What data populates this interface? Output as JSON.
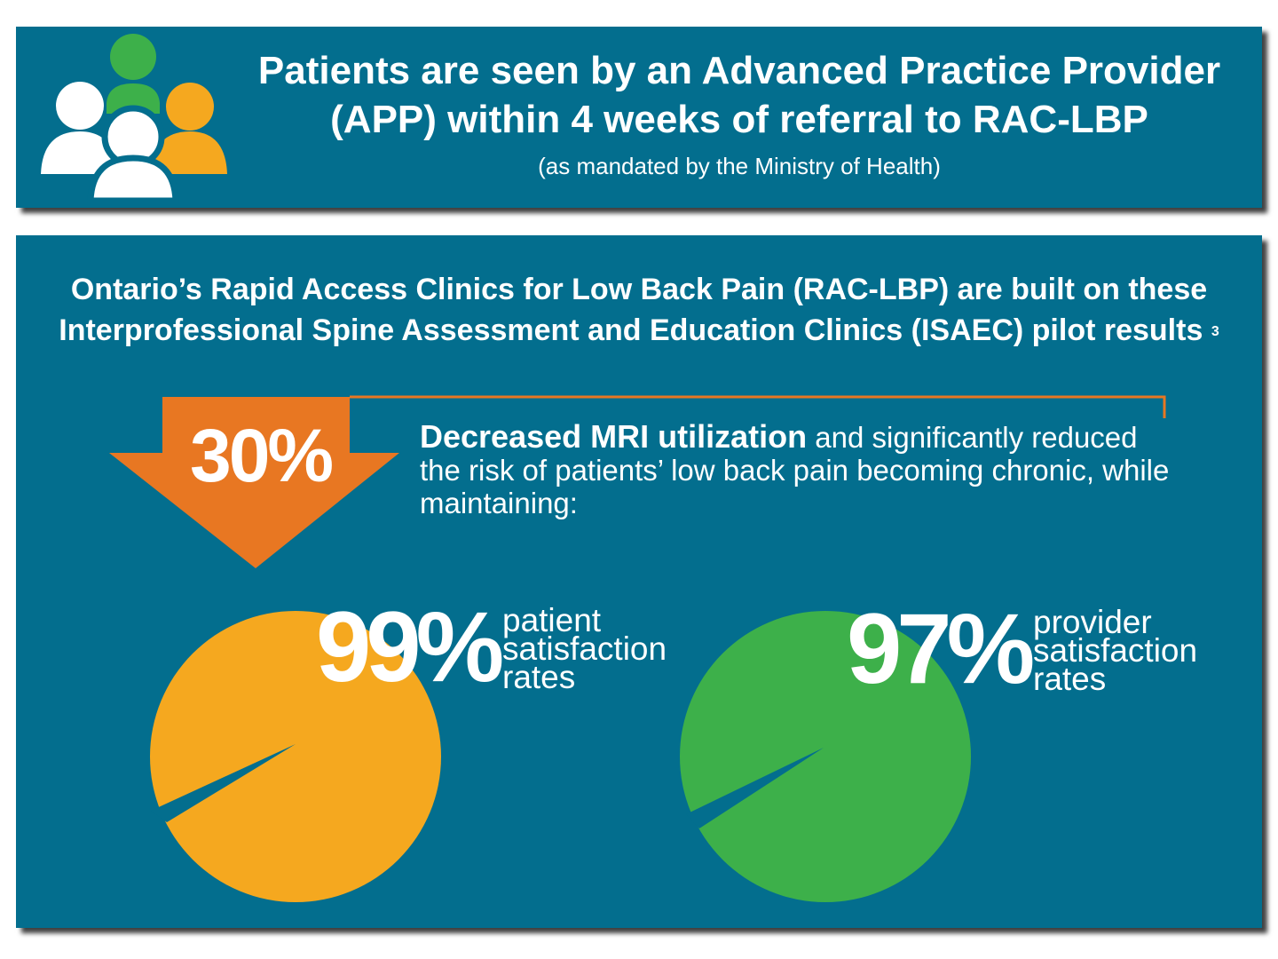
{
  "header": {
    "title_line1": "Patients are seen by an Advanced Practice Provider",
    "title_line2": "(APP) within 4 weeks of referral to RAC-LBP",
    "subtitle": "(as mandated by the Ministry of Health)",
    "icon": "people-group-icon"
  },
  "main": {
    "heading_line1": "Ontario’s Rapid Access Clinics for Low Back Pain (RAC-LBP) are built on these",
    "heading_line2": "Interprofessional Spine Assessment and Education Clinics (ISAEC) pilot results",
    "footnote": "3",
    "arrow_value": "30%",
    "arrow_icon": "down-arrow-icon",
    "desc_bold": "Decreased MRI utilization",
    "desc_rest": " and significantly reduced the risk of patients’ low back pain becoming chronic, while maintaining:",
    "stats": [
      {
        "value": "99%",
        "percent": 99,
        "label1": "patient",
        "label2": "satisfaction",
        "label3": "rates",
        "color": "#f5a81f"
      },
      {
        "value": "97%",
        "percent": 97,
        "label1": "provider",
        "label2": "satisfaction",
        "label3": "rates",
        "color": "#3db04a"
      }
    ]
  },
  "colors": {
    "panel": "#036e8e",
    "arrow": "#e87722",
    "orange": "#f5a81f",
    "green": "#3db04a"
  }
}
